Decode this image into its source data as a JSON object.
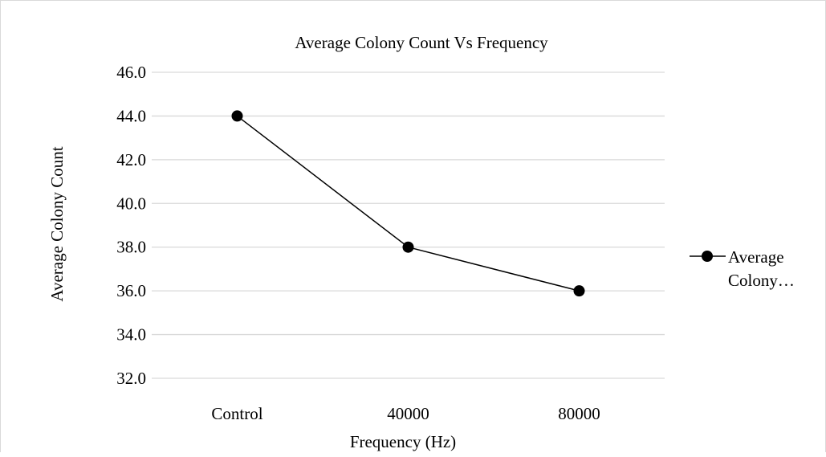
{
  "chart_data": {
    "type": "line",
    "title": "Average Colony Count Vs Frequency",
    "xlabel": "Frequency (Hz)",
    "ylabel": "Average Colony Count",
    "categories": [
      "Control",
      "40000",
      "80000"
    ],
    "series": [
      {
        "name": "Average Colony…",
        "name_lines": [
          "Average",
          "Colony…"
        ],
        "values": [
          44.0,
          38.0,
          36.0
        ],
        "color": "#000000"
      }
    ],
    "ylim": [
      32.0,
      46.0
    ],
    "yticks": [
      32.0,
      34.0,
      36.0,
      38.0,
      40.0,
      42.0,
      44.0,
      46.0
    ],
    "ytick_labels": [
      "32.0",
      "34.0",
      "36.0",
      "38.0",
      "40.0",
      "42.0",
      "44.0",
      "46.0"
    ],
    "grid": true,
    "grid_color": "#d9d9d9",
    "legend_position": "right"
  }
}
